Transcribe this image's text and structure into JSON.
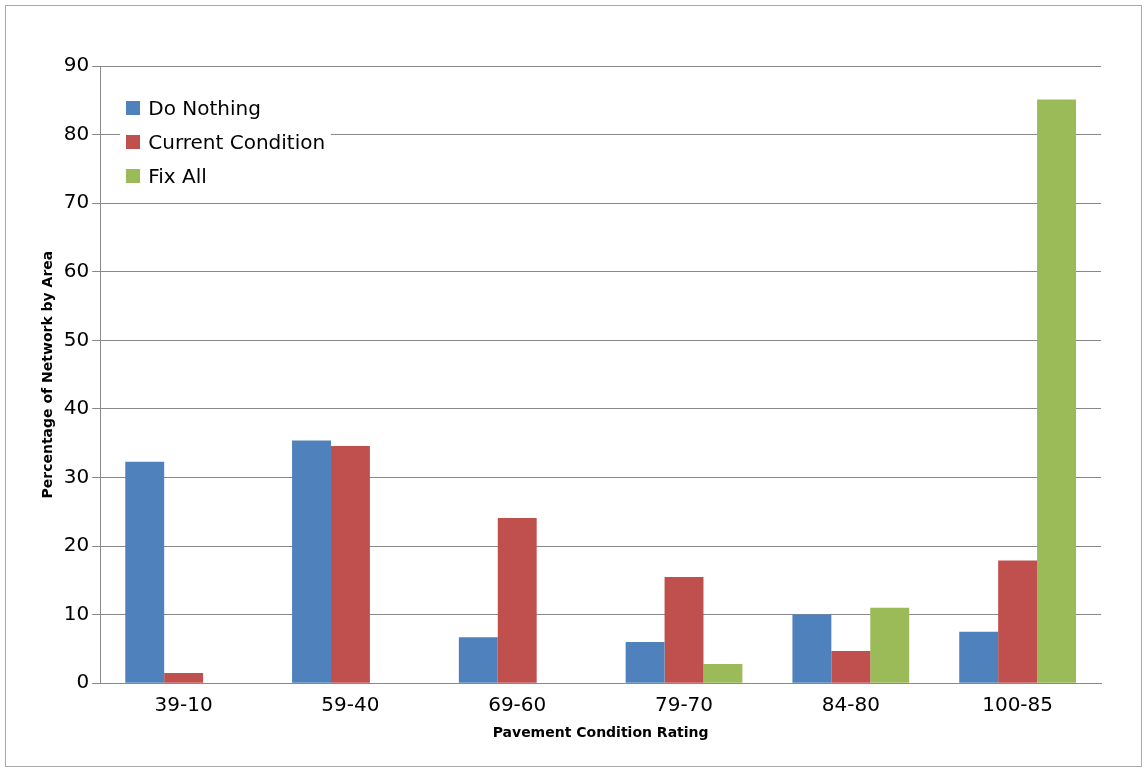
{
  "chart_data": {
    "type": "bar",
    "xlabel": "Pavement Condition Rating",
    "ylabel": "Percentage of Network by Area",
    "categories": [
      "39-10",
      "59-40",
      "69-60",
      "79-70",
      "84-80",
      "100-85"
    ],
    "series": [
      {
        "name": "Do Nothing",
        "color": "#4f81bd",
        "values": [
          32.3,
          35.4,
          6.7,
          6,
          10,
          7.5
        ]
      },
      {
        "name": "Current Condition",
        "color": "#c0504d",
        "values": [
          1.5,
          34.6,
          24.1,
          15.5,
          4.7,
          17.9
        ]
      },
      {
        "name": "Fix All",
        "color": "#9bbb59",
        "values": [
          0,
          0,
          0,
          2.8,
          11,
          85.1
        ]
      }
    ],
    "ylim": [
      0,
      90
    ],
    "yticks": [
      0,
      10,
      20,
      30,
      40,
      50,
      60,
      70,
      80,
      90
    ],
    "grid": "y",
    "legend": "top left"
  }
}
